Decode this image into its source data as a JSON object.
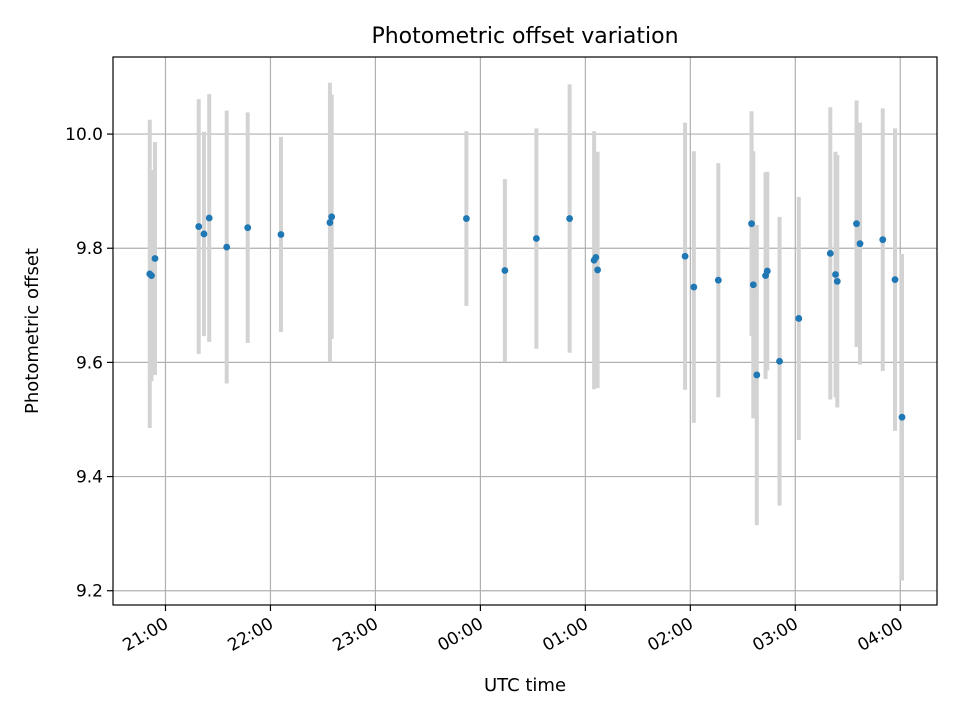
{
  "chart_data": {
    "type": "scatter",
    "title": "Photometric offset variation",
    "xlabel": "UTC time",
    "ylabel": "Photometric offset",
    "grid": true,
    "x_is_time": true,
    "x_tick_labels": [
      "21:00",
      "22:00",
      "23:00",
      "00:00",
      "01:00",
      "02:00",
      "03:00",
      "04:00"
    ],
    "y_ticks": [
      9.2,
      9.4,
      9.6,
      9.8,
      10.0
    ],
    "y_tick_labels": [
      "9.2",
      "9.4",
      "9.6",
      "9.8",
      "10.0"
    ],
    "ylim": [
      9.175,
      10.135
    ],
    "xlim": [
      "20:30",
      "04:21"
    ],
    "marker_color": "#1f77b4",
    "errorbar_color": "#d3d3d3",
    "points": [
      {
        "t": "20:51",
        "y": 9.755,
        "ylo": 9.485,
        "yhi": 10.025
      },
      {
        "t": "20:52",
        "y": 9.752,
        "ylo": 9.567,
        "yhi": 9.937
      },
      {
        "t": "20:54",
        "y": 9.782,
        "ylo": 9.578,
        "yhi": 9.986
      },
      {
        "t": "21:19",
        "y": 9.838,
        "ylo": 9.615,
        "yhi": 10.061
      },
      {
        "t": "21:22",
        "y": 9.825,
        "ylo": 9.646,
        "yhi": 10.004
      },
      {
        "t": "21:25",
        "y": 9.853,
        "ylo": 9.636,
        "yhi": 10.07
      },
      {
        "t": "21:35",
        "y": 9.802,
        "ylo": 9.563,
        "yhi": 10.041
      },
      {
        "t": "21:47",
        "y": 9.836,
        "ylo": 9.634,
        "yhi": 10.038
      },
      {
        "t": "22:06",
        "y": 9.824,
        "ylo": 9.653,
        "yhi": 9.995
      },
      {
        "t": "22:34",
        "y": 9.845,
        "ylo": 9.6,
        "yhi": 10.09
      },
      {
        "t": "22:35",
        "y": 9.855,
        "ylo": 9.641,
        "yhi": 10.069
      },
      {
        "t": "23:52",
        "y": 9.852,
        "ylo": 9.699,
        "yhi": 10.005
      },
      {
        "t": "00:14",
        "y": 9.761,
        "ylo": 9.601,
        "yhi": 9.921
      },
      {
        "t": "00:32",
        "y": 9.817,
        "ylo": 9.624,
        "yhi": 10.01
      },
      {
        "t": "00:51",
        "y": 9.852,
        "ylo": 9.617,
        "yhi": 10.087
      },
      {
        "t": "01:05",
        "y": 9.779,
        "ylo": 9.553,
        "yhi": 10.005
      },
      {
        "t": "01:06",
        "y": 9.784,
        "ylo": 9.607,
        "yhi": 9.961
      },
      {
        "t": "01:07",
        "y": 9.762,
        "ylo": 9.555,
        "yhi": 9.969
      },
      {
        "t": "01:57",
        "y": 9.786,
        "ylo": 9.552,
        "yhi": 10.02
      },
      {
        "t": "02:02",
        "y": 9.732,
        "ylo": 9.494,
        "yhi": 9.97
      },
      {
        "t": "02:16",
        "y": 9.744,
        "ylo": 9.539,
        "yhi": 9.949
      },
      {
        "t": "02:35",
        "y": 9.843,
        "ylo": 9.646,
        "yhi": 10.04
      },
      {
        "t": "02:36",
        "y": 9.736,
        "ylo": 9.502,
        "yhi": 9.97
      },
      {
        "t": "02:38",
        "y": 9.578,
        "ylo": 9.315,
        "yhi": 9.841
      },
      {
        "t": "02:43",
        "y": 9.752,
        "ylo": 9.571,
        "yhi": 9.933
      },
      {
        "t": "02:44",
        "y": 9.76,
        "ylo": 9.586,
        "yhi": 9.934
      },
      {
        "t": "02:51",
        "y": 9.602,
        "ylo": 9.349,
        "yhi": 9.855
      },
      {
        "t": "03:02",
        "y": 9.677,
        "ylo": 9.464,
        "yhi": 9.89
      },
      {
        "t": "03:20",
        "y": 9.791,
        "ylo": 9.535,
        "yhi": 10.047
      },
      {
        "t": "03:23",
        "y": 9.754,
        "ylo": 9.539,
        "yhi": 9.969
      },
      {
        "t": "03:24",
        "y": 9.742,
        "ylo": 9.521,
        "yhi": 9.963
      },
      {
        "t": "03:35",
        "y": 9.843,
        "ylo": 9.627,
        "yhi": 10.059
      },
      {
        "t": "03:37",
        "y": 9.808,
        "ylo": 9.596,
        "yhi": 10.02
      },
      {
        "t": "03:50",
        "y": 9.815,
        "ylo": 9.585,
        "yhi": 10.045
      },
      {
        "t": "03:57",
        "y": 9.745,
        "ylo": 9.48,
        "yhi": 10.01
      },
      {
        "t": "04:01",
        "y": 9.504,
        "ylo": 9.218,
        "yhi": 9.79
      }
    ]
  }
}
